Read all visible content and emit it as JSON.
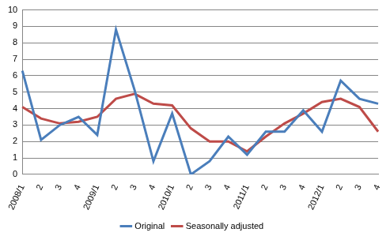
{
  "chart_data": {
    "type": "line",
    "categories": [
      "2008/1",
      "2",
      "3",
      "4",
      "2009/1",
      "2",
      "3",
      "4",
      "2010/1",
      "2",
      "3",
      "4",
      "2011/1",
      "2",
      "3",
      "4",
      "2012/1",
      "2",
      "3",
      "4"
    ],
    "series": [
      {
        "name": "Original",
        "color": "#4a7ebb",
        "values": [
          6.3,
          2.1,
          3.0,
          3.5,
          2.4,
          8.8,
          5.1,
          0.8,
          3.7,
          0.0,
          0.8,
          2.3,
          1.2,
          2.6,
          2.6,
          3.9,
          2.6,
          5.7,
          4.6,
          4.3
        ]
      },
      {
        "name": "Seasonally adjusted",
        "color": "#be4b48",
        "values": [
          4.1,
          3.4,
          3.1,
          3.2,
          3.5,
          4.6,
          4.9,
          4.3,
          4.2,
          2.8,
          2.0,
          2.0,
          1.4,
          2.3,
          3.1,
          3.7,
          4.4,
          4.6,
          4.1,
          2.6
        ]
      }
    ],
    "ylim": [
      0,
      10
    ],
    "yticks": [
      0,
      1,
      2,
      3,
      4,
      5,
      6,
      7,
      8,
      9,
      10
    ],
    "grid": true,
    "legend": "bottom"
  }
}
